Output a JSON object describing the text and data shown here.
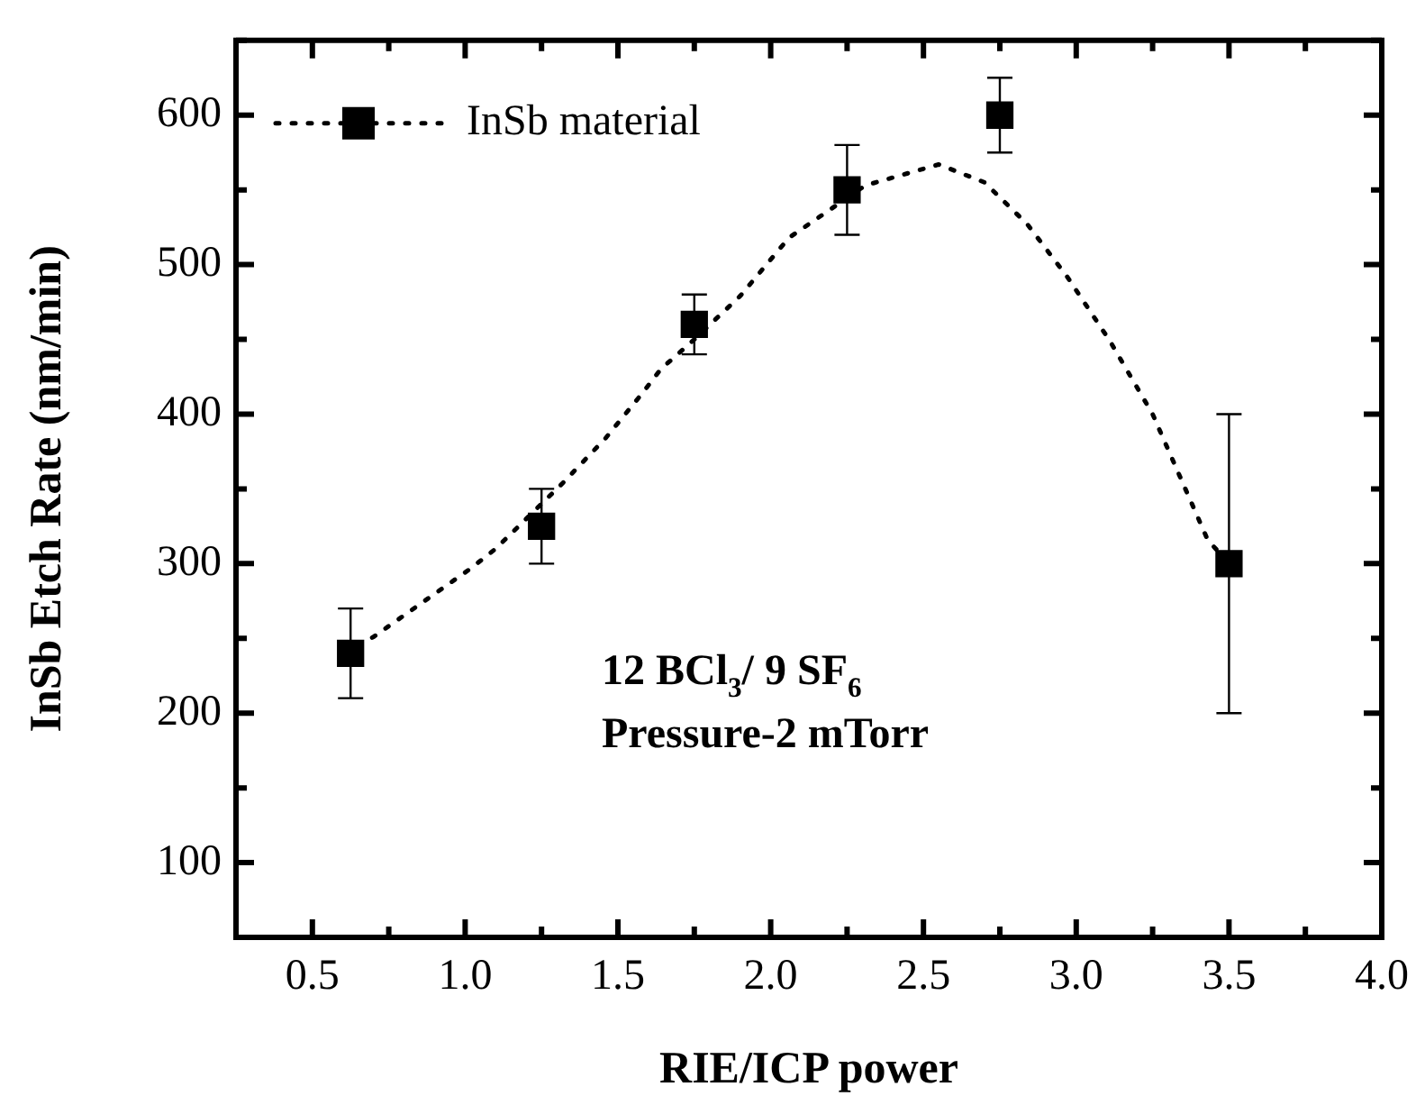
{
  "chart_data": {
    "type": "scatter",
    "xlabel": "RIE/ICP power",
    "ylabel": "InSb Etch Rate (nm/min)",
    "xlim": [
      0.25,
      4.0
    ],
    "ylim": [
      50,
      650
    ],
    "xticks": [
      {
        "value": 0.25,
        "label": null
      },
      0.5,
      {
        "value": 0.75,
        "label": null
      },
      {
        "value": 1,
        "label": "1.0"
      },
      {
        "value": 1.25,
        "label": null
      },
      1.5,
      {
        "value": 1.75,
        "label": null
      },
      {
        "value": 2,
        "label": "2.0"
      },
      {
        "value": 2.25,
        "label": null
      },
      2.5,
      {
        "value": 2.75,
        "label": null
      },
      {
        "value": 3,
        "label": "3.0"
      },
      {
        "value": 3.25,
        "label": null
      },
      3.5,
      {
        "value": 3.75,
        "label": null
      },
      {
        "value": 4,
        "label": "4.0"
      }
    ],
    "yticks": [
      {
        "value": 50,
        "label": null
      },
      100,
      {
        "value": 150,
        "label": null
      },
      200,
      {
        "value": 250,
        "label": null
      },
      300,
      {
        "value": 350,
        "label": null
      },
      400,
      {
        "value": 450,
        "label": null
      },
      500,
      {
        "value": 550,
        "label": null
      },
      600,
      {
        "value": 650,
        "label": null
      }
    ],
    "legend": "top left",
    "grid": false,
    "annotations": [
      "12 BCl$_{3}$/ 9 SF$_{6}$",
      "Pressure-2 mTorr"
    ],
    "series": [
      {
        "name": "InSb material",
        "color": "#000000",
        "marker": "square",
        "x": [
          0.625,
          1.25,
          1.75,
          2.25,
          2.75,
          3.5
        ],
        "values": [
          240,
          325,
          460,
          550,
          600,
          300
        ],
        "errors": [
          30,
          25,
          20,
          30,
          25,
          100
        ]
      },
      {
        "type": "line",
        "color": "#000000",
        "marker": "none",
        "line_style": "dotted",
        "x": [
          0.65,
          0.7,
          0.86,
          1.02,
          1.1,
          1.32,
          1.46,
          1.58,
          1.64,
          1.75,
          1.9,
          2.06,
          2.31,
          2.55,
          2.7,
          2.84,
          2.97,
          3.11,
          3.25,
          3.43,
          3.5
        ],
        "values": [
          245,
          251,
          274,
          297,
          310,
          354,
          384,
          414,
          430,
          450,
          479,
          518,
          553,
          567,
          555,
          527,
          492,
          449,
          400,
          316,
          300
        ]
      }
    ]
  }
}
